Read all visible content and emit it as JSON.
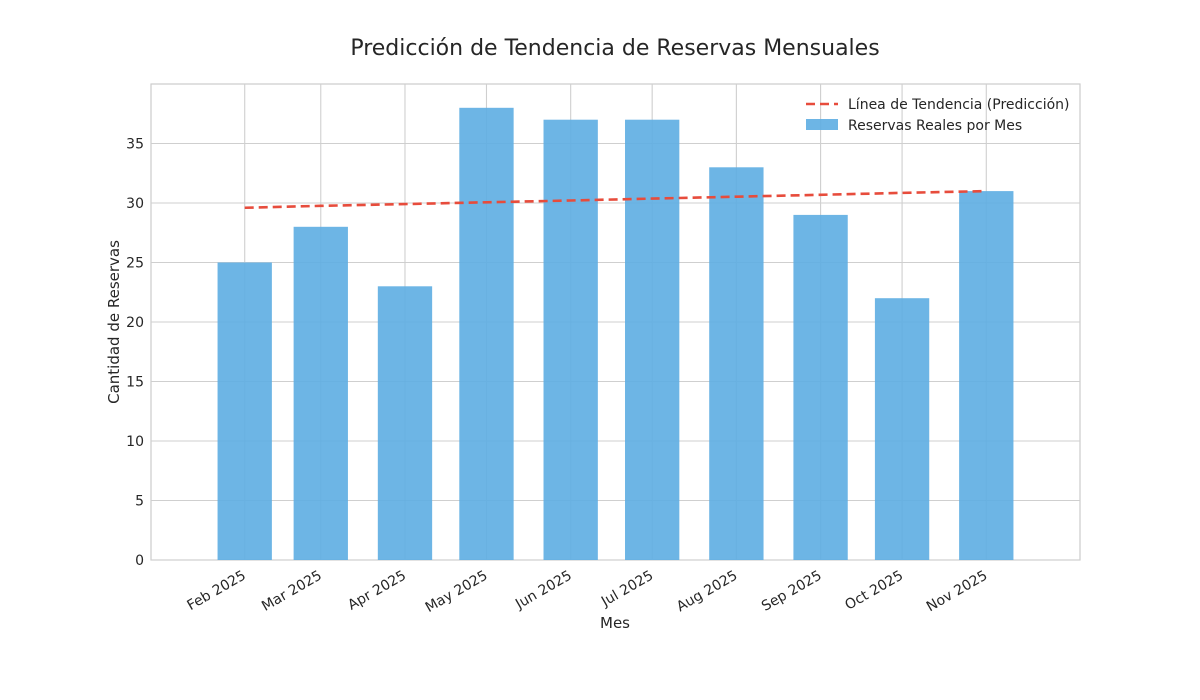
{
  "chart_data": {
    "type": "bar",
    "title": "Predicción de Tendencia de Reservas Mensuales",
    "xlabel": "Mes",
    "ylabel": "Cantidad de Reservas",
    "categories": [
      "Feb 2025",
      "Mar 2025",
      "Apr 2025",
      "May 2025",
      "Jun 2025",
      "Jul 2025",
      "Aug 2025",
      "Sep 2025",
      "Oct 2025",
      "Nov 2025"
    ],
    "x_dates": [
      "2025-02-01",
      "2025-03-01",
      "2025-04-01",
      "2025-05-01",
      "2025-06-01",
      "2025-07-01",
      "2025-08-01",
      "2025-09-01",
      "2025-10-01",
      "2025-11-01"
    ],
    "series": [
      {
        "name": "Reservas Reales por Mes",
        "kind": "bar",
        "color": "#5DADE2",
        "values": [
          25,
          28,
          23,
          38,
          37,
          37,
          33,
          29,
          22,
          31
        ]
      },
      {
        "name": "Línea de Tendencia (Predicción)",
        "kind": "line",
        "style": "dashed",
        "color": "#E74C3C",
        "values": [
          29.6,
          29.76,
          29.91,
          30.06,
          30.21,
          30.37,
          30.53,
          30.69,
          30.85,
          31.0
        ]
      }
    ],
    "ylim": [
      0,
      40
    ],
    "yticks": [
      0,
      5,
      10,
      15,
      20,
      25,
      30,
      35
    ],
    "grid": true,
    "legend": {
      "position": "top-right",
      "order": [
        "Línea de Tendencia (Predicción)",
        "Reservas Reales por Mes"
      ]
    }
  }
}
